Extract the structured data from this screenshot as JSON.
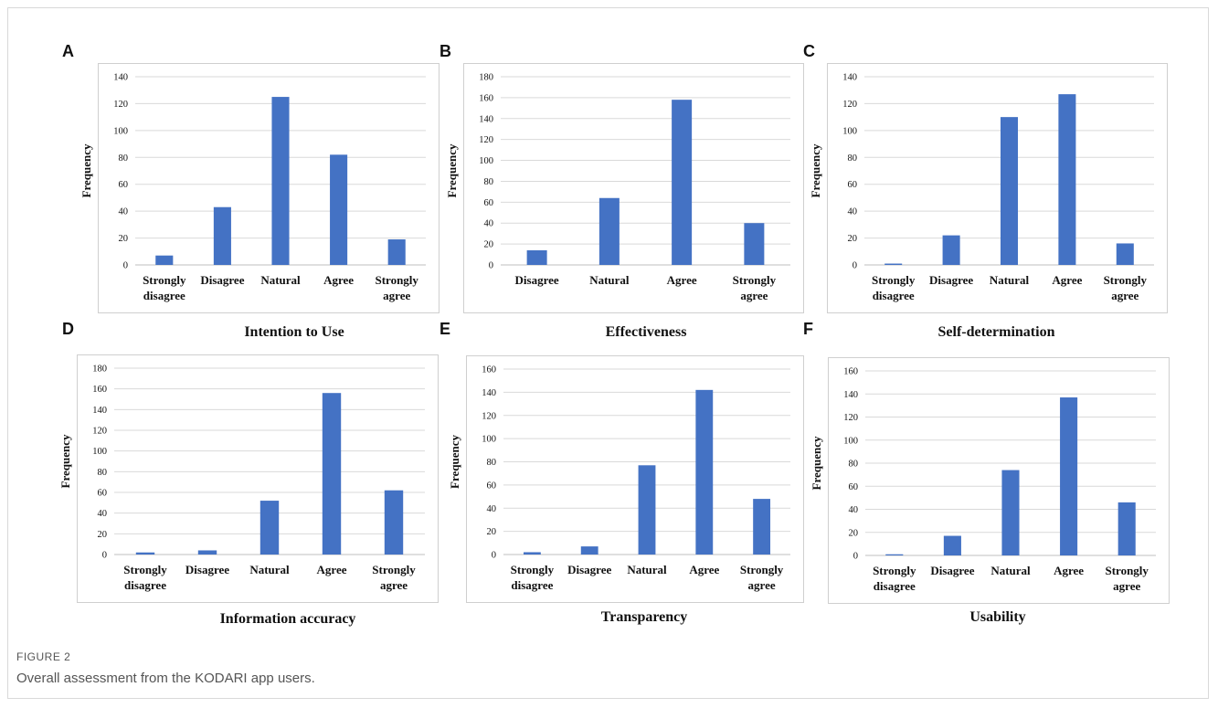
{
  "figure": {
    "label": "FIGURE 2",
    "caption": "Overall assessment from the KODARI app users."
  },
  "colors": {
    "bar": "#4472c4",
    "grid": "#d9d9d9",
    "axis": "#bfbfbf"
  },
  "chart_data": [
    {
      "letter": "A",
      "type": "bar",
      "title": "Intention to Use",
      "ylabel": "Frequency",
      "categories": [
        "Strongly disagree",
        "Disagree",
        "Natural",
        "Agree",
        "Strongly agree"
      ],
      "values": [
        7,
        43,
        125,
        82,
        19
      ],
      "ylim": [
        0,
        140
      ],
      "yticks": [
        0,
        20,
        40,
        60,
        80,
        100,
        120,
        140
      ],
      "grid": true
    },
    {
      "letter": "B",
      "type": "bar",
      "title": "Effectiveness",
      "ylabel": "Frequency",
      "categories": [
        "Disagree",
        "Natural",
        "Agree",
        "Strongly agree"
      ],
      "values": [
        14,
        64,
        158,
        40
      ],
      "ylim": [
        0,
        180
      ],
      "yticks": [
        0,
        20,
        40,
        60,
        80,
        100,
        120,
        140,
        160,
        180
      ],
      "grid": true
    },
    {
      "letter": "C",
      "type": "bar",
      "title": "Self-determination",
      "ylabel": "Frequency",
      "categories": [
        "Strongly disagree",
        "Disagree",
        "Natural",
        "Agree",
        "Strongly agree"
      ],
      "values": [
        1,
        22,
        110,
        127,
        16
      ],
      "ylim": [
        0,
        140
      ],
      "yticks": [
        0,
        20,
        40,
        60,
        80,
        100,
        120,
        140
      ],
      "grid": true
    },
    {
      "letter": "D",
      "type": "bar",
      "title": "Information accuracy",
      "ylabel": "Frequency",
      "categories": [
        "Strongly disagree",
        "Disagree",
        "Natural",
        "Agree",
        "Strongly agree"
      ],
      "values": [
        2,
        4,
        52,
        156,
        62
      ],
      "ylim": [
        0,
        180
      ],
      "yticks": [
        0,
        20,
        40,
        60,
        80,
        100,
        120,
        140,
        160,
        180
      ],
      "grid": true
    },
    {
      "letter": "E",
      "type": "bar",
      "title": "Transparency",
      "ylabel": "Frequency",
      "categories": [
        "Strongly disagree",
        "Disagree",
        "Natural",
        "Agree",
        "Strongly agree"
      ],
      "values": [
        2,
        7,
        77,
        142,
        48
      ],
      "ylim": [
        0,
        160
      ],
      "yticks": [
        0,
        20,
        40,
        60,
        80,
        100,
        120,
        140,
        160
      ],
      "grid": true
    },
    {
      "letter": "F",
      "type": "bar",
      "title": "Usability",
      "ylabel": "Frequency",
      "categories": [
        "Strongly disagree",
        "Disagree",
        "Natural",
        "Agree",
        "Strongly agree"
      ],
      "values": [
        1,
        17,
        74,
        137,
        46
      ],
      "ylim": [
        0,
        160
      ],
      "yticks": [
        0,
        20,
        40,
        60,
        80,
        100,
        120,
        140,
        160
      ],
      "grid": true
    }
  ]
}
